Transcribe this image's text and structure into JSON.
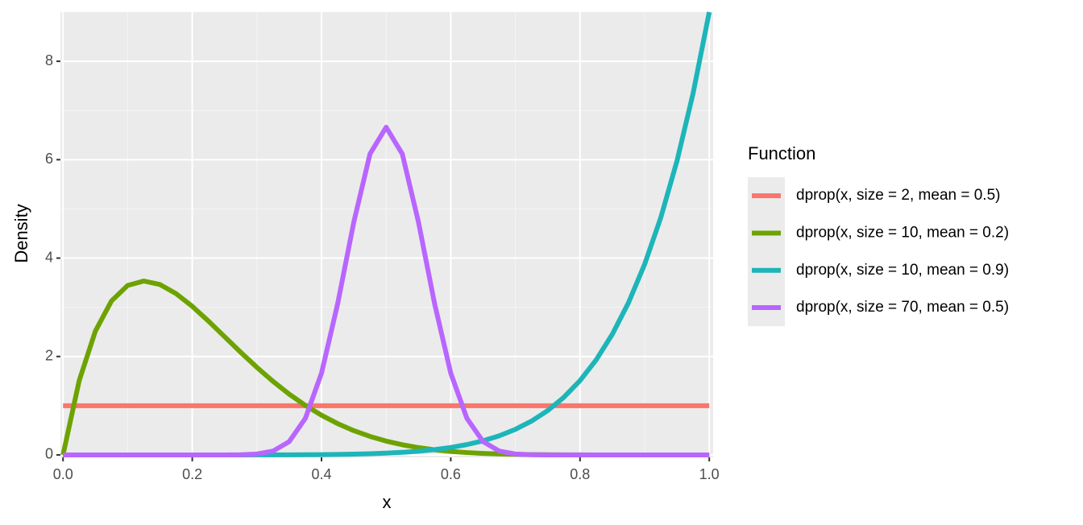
{
  "chart_data": {
    "type": "line",
    "x_label": "x",
    "y_label": "Density",
    "legend_title": "Function",
    "xlim": [
      -0.004,
      1.006
    ],
    "ylim": [
      -0.05,
      9.0
    ],
    "xticks": [
      {
        "value": 0,
        "label": "0.0"
      },
      0.2,
      0.4,
      0.6,
      0.8,
      {
        "value": 1,
        "label": "1.0"
      }
    ],
    "yticks": [
      0,
      2,
      4,
      6,
      8
    ],
    "grid": true,
    "legend": "right",
    "x": [
      0,
      0.025,
      0.05,
      0.075,
      0.1,
      0.125,
      0.15,
      0.175,
      0.2,
      0.225,
      0.25,
      0.275,
      0.3,
      0.325,
      0.35,
      0.375,
      0.4,
      0.425,
      0.45,
      0.475,
      0.5,
      0.525,
      0.55,
      0.575,
      0.6,
      0.625,
      0.65,
      0.675,
      0.7,
      0.725,
      0.75,
      0.775,
      0.8,
      0.825,
      0.85,
      0.875,
      0.9,
      0.925,
      0.95,
      0.975,
      1
    ],
    "series": [
      {
        "name": "dprop(x, size = 2, mean = 0.5)",
        "color": "#F8766D",
        "values": [
          1,
          1,
          1,
          1,
          1,
          1,
          1,
          1,
          1,
          1,
          1,
          1,
          1,
          1,
          1,
          1,
          1,
          1,
          1,
          1,
          1,
          1,
          1,
          1,
          1,
          1,
          1,
          1,
          1,
          1,
          1,
          1,
          1,
          1,
          1,
          1,
          1,
          1,
          1,
          1,
          1
        ]
      },
      {
        "name": "dprop(x, size = 10, mean = 0.2)",
        "color": "#6DA300",
        "values": [
          0,
          1.508,
          2.514,
          3.129,
          3.444,
          3.534,
          3.463,
          3.277,
          3.02,
          2.72,
          2.403,
          2.085,
          1.779,
          1.494,
          1.235,
          1.006,
          0.806,
          0.636,
          0.493,
          0.376,
          0.281,
          0.206,
          0.148,
          0.104,
          0.071,
          0.047,
          0.03,
          0.019,
          0.011,
          0.006,
          0.003,
          0.002,
          0.001,
          0,
          0,
          0,
          0,
          0,
          0,
          0,
          0
        ]
      },
      {
        "name": "dprop(x, size = 10, mean = 0.9)",
        "color": "#1DB5B9",
        "values": [
          0,
          0,
          0,
          0,
          0,
          0,
          0,
          0,
          0,
          0,
          0,
          0,
          0.001,
          0.001,
          0.002,
          0.004,
          0.006,
          0.01,
          0.015,
          0.023,
          0.035,
          0.052,
          0.075,
          0.108,
          0.151,
          0.21,
          0.287,
          0.388,
          0.519,
          0.687,
          0.901,
          1.171,
          1.51,
          1.931,
          2.452,
          3.092,
          3.874,
          4.824,
          5.971,
          7.35,
          9
        ]
      },
      {
        "name": "dprop(x, size = 70, mean = 0.5)",
        "color": "#B866FF",
        "values": [
          0,
          0,
          0,
          0,
          0,
          0,
          0,
          0,
          0,
          0,
          0,
          0.003,
          0.018,
          0.078,
          0.27,
          0.742,
          1.662,
          3.072,
          4.733,
          6.117,
          6.66,
          6.117,
          4.733,
          3.072,
          1.662,
          0.742,
          0.27,
          0.078,
          0.018,
          0.003,
          0,
          0,
          0,
          0,
          0,
          0,
          0,
          0,
          0,
          0,
          0
        ]
      }
    ]
  }
}
